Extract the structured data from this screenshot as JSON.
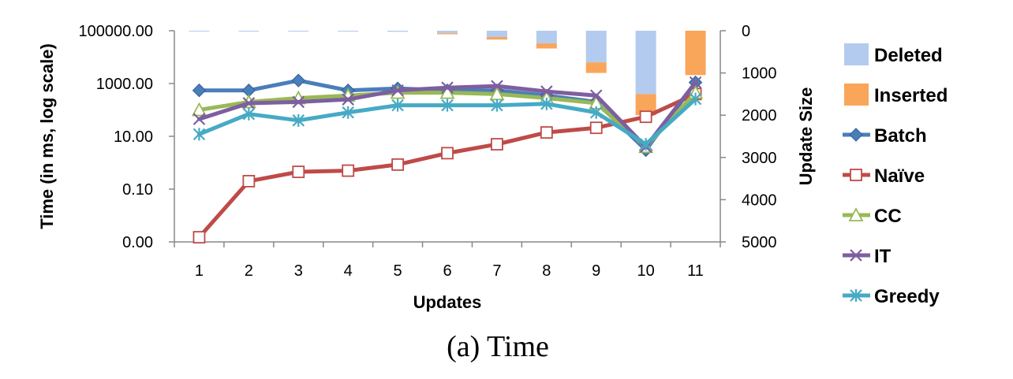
{
  "caption": "(a) Time",
  "chart_data": {
    "type": "line",
    "title": "",
    "xlabel": "Updates",
    "ylabel_left": "Time (in ms, log scale)",
    "ylabel_right": "Update Size",
    "categories": [
      "1",
      "2",
      "3",
      "4",
      "5",
      "6",
      "7",
      "8",
      "9",
      "10",
      "11"
    ],
    "left_axis": {
      "scale": "log",
      "ylim": [
        0.001,
        100000
      ],
      "tick_values": [
        0.001,
        0.1,
        10,
        1000,
        100000
      ],
      "tick_labels": [
        "0.00",
        "0.10",
        "10.00",
        "1000.00",
        "100000.00"
      ]
    },
    "right_axis": {
      "scale": "linear",
      "inverted": true,
      "ylim": [
        0,
        5000
      ],
      "tick_values": [
        0,
        1000,
        2000,
        3000,
        4000,
        5000
      ],
      "tick_labels": [
        "0",
        "1000",
        "2000",
        "3000",
        "4000",
        "5000"
      ]
    },
    "bar_series": [
      {
        "name": "Deleted",
        "color": "#b3cbee",
        "values": [
          15,
          20,
          20,
          20,
          25,
          60,
          150,
          300,
          750,
          1500,
          0
        ]
      },
      {
        "name": "Inserted",
        "color": "#f9a55a",
        "values": [
          0,
          0,
          0,
          0,
          0,
          25,
          60,
          120,
          250,
          500,
          1050
        ]
      }
    ],
    "line_series": [
      {
        "name": "Batch",
        "color": "#4a7ebb",
        "marker": "diamond",
        "values": [
          550,
          550,
          1300,
          550,
          650,
          550,
          550,
          350,
          200,
          3,
          1100
        ]
      },
      {
        "name": "Naïve",
        "color": "#be4b48",
        "marker": "square",
        "values": [
          0.0015,
          0.2,
          0.45,
          0.5,
          0.85,
          2.3,
          5,
          14,
          21,
          55,
          400
        ]
      },
      {
        "name": "CC",
        "color": "#98b954",
        "marker": "triangle",
        "values": [
          100,
          200,
          280,
          350,
          450,
          450,
          400,
          280,
          180,
          4,
          450
        ]
      },
      {
        "name": "IT",
        "color": "#7d5fa0",
        "marker": "x",
        "values": [
          45,
          180,
          200,
          250,
          550,
          700,
          800,
          500,
          350,
          4,
          1100
        ]
      },
      {
        "name": "Greedy",
        "color": "#46aac5",
        "marker": "star",
        "values": [
          12,
          70,
          40,
          80,
          150,
          150,
          150,
          170,
          80,
          5,
          260
        ]
      }
    ],
    "legend_position": "right",
    "grid": false
  }
}
